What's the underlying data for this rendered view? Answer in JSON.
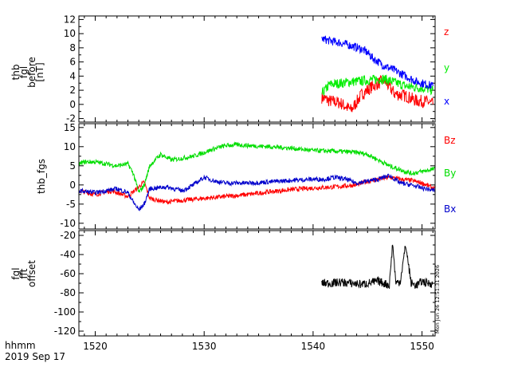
{
  "chart_data": [
    {
      "type": "line",
      "ylabel_lines": [
        "thb",
        "fgl",
        "before",
        "[nT]"
      ],
      "ylim": [
        -2.5,
        12.5
      ],
      "yticks": [
        -2,
        0,
        2,
        4,
        6,
        8,
        10,
        12
      ],
      "xlim": [
        1518.5,
        1551.2
      ],
      "legend_placement": "right",
      "series": [
        {
          "name": "z",
          "color": "#ff0000",
          "x": [
            1540.8,
            1541.5,
            1542.5,
            1543.5,
            1544.5,
            1545.5,
            1546.5,
            1547.5,
            1548.5,
            1549.5,
            1550.5,
            1551.0
          ],
          "y": [
            1.0,
            0.5,
            0.2,
            -0.8,
            1.5,
            2.6,
            3.4,
            1.5,
            1.2,
            0.5,
            0.4,
            0.0
          ]
        },
        {
          "name": "y",
          "color": "#00ee00",
          "x": [
            1540.8,
            1541.5,
            1542.5,
            1543.5,
            1544.5,
            1545.5,
            1546.5,
            1547.5,
            1548.5,
            1549.5,
            1550.5,
            1551.0
          ],
          "y": [
            1.5,
            2.8,
            3.0,
            3.2,
            3.3,
            3.5,
            3.6,
            3.1,
            2.6,
            2.4,
            2.2,
            2.0
          ]
        },
        {
          "name": "x",
          "color": "#0000ff",
          "x": [
            1540.8,
            1541.5,
            1542.5,
            1543.5,
            1544.5,
            1545.0,
            1545.5,
            1546.5,
            1547.5,
            1548.5,
            1549.5,
            1550.5,
            1551.0
          ],
          "y": [
            9.3,
            9.0,
            8.7,
            8.3,
            7.8,
            7.3,
            6.5,
            5.5,
            4.8,
            4.0,
            3.2,
            2.8,
            2.6
          ]
        }
      ]
    },
    {
      "type": "line",
      "ylabel_lines": [
        "thb_fgs"
      ],
      "ylim": [
        -11.5,
        16
      ],
      "yticks": [
        -10,
        -5,
        0,
        5,
        10,
        15
      ],
      "xlim": [
        1518.5,
        1551.2
      ],
      "legend_placement": "right",
      "series": [
        {
          "name": "Bz",
          "color": "#ff0000",
          "x": [
            1518.5,
            1520,
            1521.5,
            1523,
            1524,
            1524.5,
            1525,
            1526.5,
            1528,
            1530,
            1532,
            1534,
            1536,
            1538,
            1540,
            1542,
            1544,
            1545,
            1546,
            1547,
            1548,
            1549,
            1550,
            1551.2
          ],
          "y": [
            -1.5,
            -2.5,
            -1.5,
            -3.0,
            -0.5,
            0.8,
            -3.5,
            -4.5,
            -4.0,
            -3.5,
            -3.0,
            -2.5,
            -1.8,
            -1.2,
            -0.8,
            -0.5,
            0.0,
            1.0,
            1.5,
            2.0,
            1.5,
            1.2,
            0.5,
            -1.0
          ]
        },
        {
          "name": "By",
          "color": "#00dd00",
          "x": [
            1518.5,
            1519,
            1520,
            1521,
            1522,
            1523,
            1523.5,
            1524,
            1524.5,
            1525,
            1526,
            1527,
            1528,
            1529,
            1530,
            1531,
            1532,
            1533,
            1534,
            1536,
            1538,
            1540,
            1542,
            1544,
            1545,
            1546,
            1547,
            1548,
            1549,
            1550,
            1551.2
          ],
          "y": [
            5.5,
            6.0,
            6.0,
            5.5,
            5.0,
            5.5,
            3.0,
            -2.0,
            0.0,
            5.0,
            8.0,
            6.5,
            7.0,
            7.5,
            8.5,
            9.5,
            10.3,
            10.5,
            10.3,
            10.0,
            9.6,
            9.0,
            8.8,
            8.5,
            8.0,
            6.5,
            5.0,
            4.0,
            3.0,
            3.5,
            4.2
          ]
        },
        {
          "name": "Bx",
          "color": "#0000cc",
          "x": [
            1518.5,
            1520,
            1522,
            1523,
            1523.5,
            1524,
            1524.5,
            1525,
            1526.5,
            1528,
            1529,
            1530,
            1531,
            1532,
            1534,
            1536,
            1538,
            1540,
            1541,
            1542,
            1543,
            1544,
            1545,
            1546,
            1547,
            1548,
            1549,
            1550,
            1551.2
          ],
          "y": [
            -1.5,
            -2.0,
            -1.0,
            -2.0,
            -4.5,
            -6.5,
            -5.0,
            -1.0,
            -0.5,
            -1.5,
            0.0,
            2.0,
            1.0,
            0.5,
            0.5,
            0.8,
            1.2,
            1.5,
            1.5,
            2.0,
            1.5,
            0.5,
            1.0,
            1.5,
            2.5,
            0.5,
            0.0,
            -0.8,
            -1.5
          ]
        }
      ]
    },
    {
      "type": "line",
      "ylabel_lines": [
        "fgl",
        "fft",
        "offset"
      ],
      "ylim": [
        -125,
        -15
      ],
      "yticks": [
        -120,
        -100,
        -80,
        -60,
        -40,
        -20
      ],
      "xlim": [
        1518.5,
        1551.2
      ],
      "xticks": [
        1520,
        1530,
        1540,
        1550
      ],
      "series": [
        {
          "color": "#000000",
          "x": [
            1540.8,
            1541.5,
            1542.5,
            1543.5,
            1544.5,
            1545.5,
            1546.0,
            1546.5,
            1547.0,
            1547.3,
            1547.6,
            1548.0,
            1548.5,
            1549.0,
            1549.5,
            1550.0,
            1550.5,
            1551.0
          ],
          "y": [
            -70,
            -70,
            -69,
            -70,
            -71,
            -69,
            -68,
            -70,
            -72,
            -28,
            -70,
            -68,
            -30,
            -70,
            -72,
            -68,
            -70,
            -70
          ]
        }
      ]
    }
  ],
  "footer": {
    "axis_label": "hhmm",
    "date": "2019 Sep 17",
    "timestamp": "Mon Jun 26 12:51:31 2026"
  }
}
